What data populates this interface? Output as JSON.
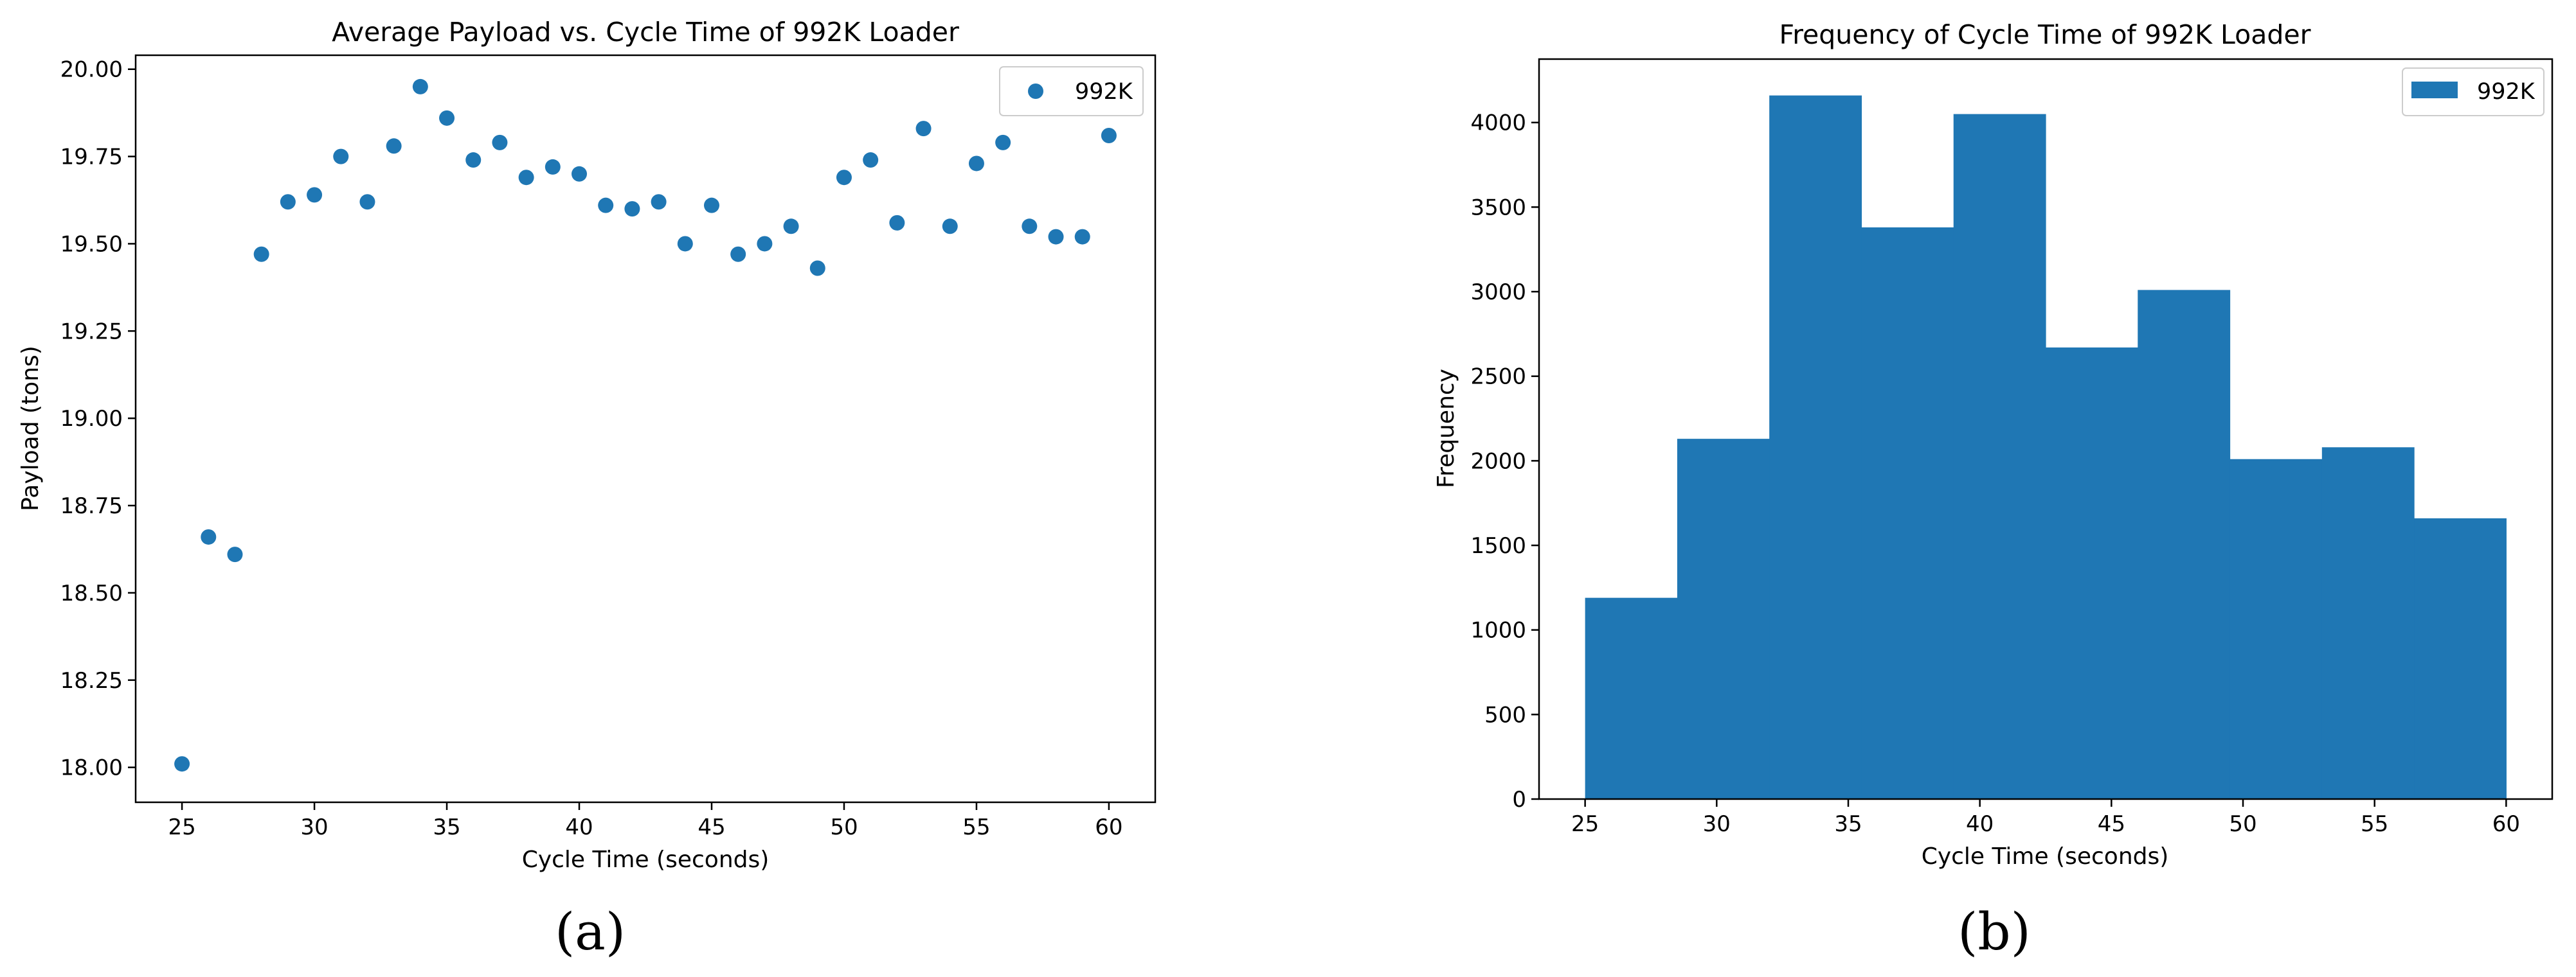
{
  "chart_data": [
    {
      "type": "scatter",
      "panel_label": "(a)",
      "title": "Average Payload vs. Cycle Time of 992K Loader",
      "xlabel": "Cycle Time (seconds)",
      "ylabel": "Payload (tons)",
      "xlim": [
        23.25,
        61.75
      ],
      "ylim": [
        17.9,
        20.04
      ],
      "xticks": [
        25,
        30,
        35,
        40,
        45,
        50,
        55,
        60
      ],
      "xtick_labels": [
        "25",
        "30",
        "35",
        "40",
        "45",
        "50",
        "55",
        "60"
      ],
      "yticks": [
        18.0,
        18.25,
        18.5,
        18.75,
        19.0,
        19.25,
        19.5,
        19.75,
        20.0
      ],
      "ytick_labels": [
        "18.00",
        "18.25",
        "18.50",
        "18.75",
        "19.00",
        "19.25",
        "19.50",
        "19.75",
        "20.00"
      ],
      "legend": "top-right",
      "grid": false,
      "color": "#1f77b4",
      "series": [
        {
          "name": "992K",
          "x": [
            25,
            26,
            27,
            28,
            29,
            30,
            31,
            32,
            33,
            34,
            35,
            36,
            37,
            38,
            39,
            40,
            41,
            42,
            43,
            44,
            45,
            46,
            47,
            48,
            49,
            50,
            51,
            52,
            53,
            54,
            55,
            56,
            57,
            58,
            59,
            60
          ],
          "y": [
            18.01,
            18.66,
            18.61,
            19.47,
            19.62,
            19.64,
            19.75,
            19.62,
            19.78,
            19.95,
            19.86,
            19.74,
            19.79,
            19.69,
            19.72,
            19.7,
            19.61,
            19.6,
            19.62,
            19.5,
            19.61,
            19.47,
            19.5,
            19.55,
            19.43,
            19.69,
            19.74,
            19.56,
            19.83,
            19.55,
            19.73,
            19.79,
            19.55,
            19.52,
            19.52,
            19.81
          ]
        }
      ]
    },
    {
      "type": "bar",
      "subtype": "histogram",
      "panel_label": "(b)",
      "title": "Frequency of Cycle Time of 992K Loader",
      "xlabel": "Cycle Time (seconds)",
      "ylabel": "Frequency",
      "xlim": [
        23.25,
        61.75
      ],
      "ylim": [
        0,
        4375
      ],
      "xticks": [
        25,
        30,
        35,
        40,
        45,
        50,
        55,
        60
      ],
      "xtick_labels": [
        "25",
        "30",
        "35",
        "40",
        "45",
        "50",
        "55",
        "60"
      ],
      "yticks": [
        0,
        500,
        1000,
        1500,
        2000,
        2500,
        3000,
        3500,
        4000
      ],
      "ytick_labels": [
        "0",
        "500",
        "1000",
        "1500",
        "2000",
        "2500",
        "3000",
        "3500",
        "4000"
      ],
      "legend": "top-right",
      "grid": false,
      "color": "#1f77b4",
      "series": [
        {
          "name": "992K",
          "bin_edges": [
            25,
            28.5,
            32,
            35.5,
            39,
            42.5,
            46,
            49.5,
            53,
            56.5,
            60
          ],
          "values": [
            1190,
            2130,
            4160,
            3380,
            4050,
            2670,
            3010,
            2010,
            2080,
            1660
          ]
        }
      ]
    }
  ]
}
